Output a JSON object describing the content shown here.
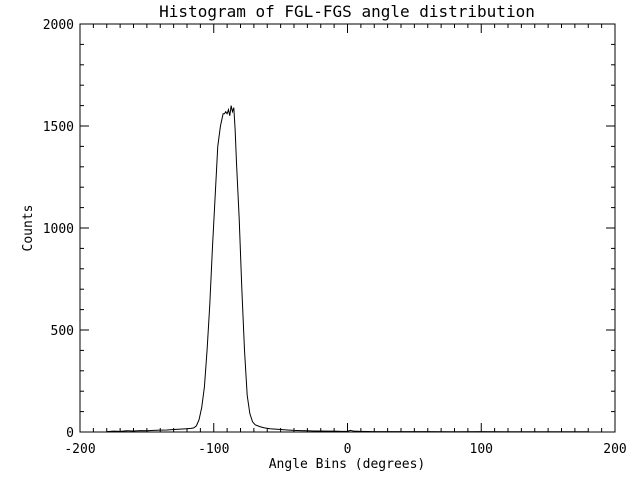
{
  "chart_data": {
    "type": "line",
    "title": "Histogram of FGL-FGS angle distribution",
    "xlabel": "Angle Bins (degrees)",
    "ylabel": "Counts",
    "xlim": [
      -200,
      200
    ],
    "ylim": [
      0,
      2000
    ],
    "x_ticks": [
      -200,
      -100,
      0,
      100,
      200
    ],
    "y_ticks": [
      0,
      500,
      1000,
      1500,
      2000
    ],
    "grid": false,
    "legend": "none",
    "series": [
      {
        "color": "#000000",
        "x": [
          -180,
          -175,
          -170,
          -165,
          -160,
          -155,
          -150,
          -145,
          -140,
          -135,
          -130,
          -125,
          -120,
          -117,
          -115,
          -113,
          -111,
          -109,
          -107,
          -105,
          -103,
          -101,
          -99,
          -97,
          -95,
          -94,
          -93,
          -92,
          -91,
          -90,
          -89,
          -88,
          -87,
          -86,
          -85,
          -84,
          -83,
          -81,
          -79,
          -77,
          -75,
          -73,
          -71,
          -69,
          -67,
          -65,
          -62,
          -58,
          -54,
          -50,
          -45,
          -40,
          -35,
          -30,
          -25,
          -20,
          -15,
          -10,
          -5,
          0,
          2,
          5,
          10,
          20,
          40,
          60,
          80,
          100,
          120,
          140,
          160,
          180
        ],
        "y": [
          2,
          4,
          3,
          6,
          5,
          7,
          6,
          8,
          9,
          10,
          12,
          14,
          16,
          18,
          20,
          30,
          60,
          120,
          220,
          400,
          620,
          900,
          1150,
          1400,
          1500,
          1530,
          1560,
          1560,
          1570,
          1560,
          1580,
          1550,
          1600,
          1570,
          1590,
          1480,
          1320,
          1050,
          700,
          400,
          180,
          90,
          50,
          35,
          30,
          25,
          20,
          16,
          14,
          12,
          10,
          8,
          7,
          6,
          5,
          5,
          4,
          4,
          3,
          3,
          8,
          4,
          3,
          2,
          2,
          2,
          1,
          2,
          1,
          1,
          1,
          1
        ]
      }
    ]
  }
}
